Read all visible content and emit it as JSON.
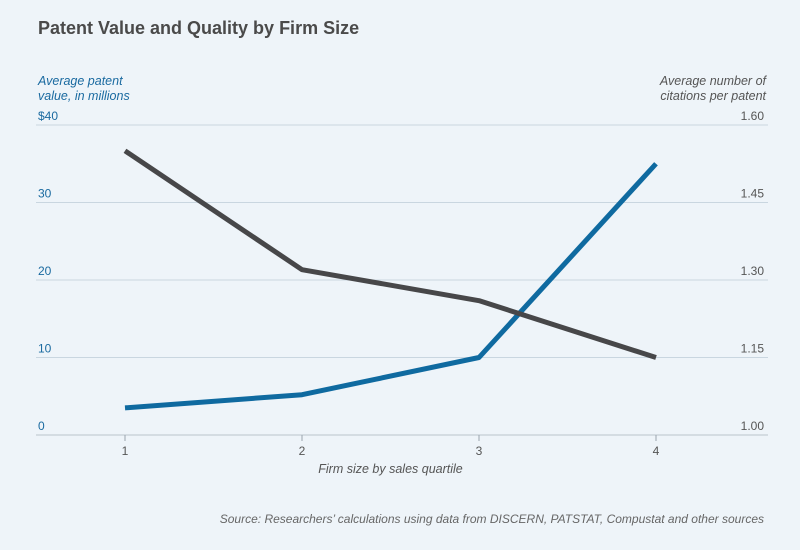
{
  "title": "Patent Value and Quality by Firm Size",
  "source": "Source: Researchers’ calculations using data from DISCERN, PATSTAT, Compustat and other sources",
  "chart_data": {
    "type": "line",
    "title": "Patent Value and Quality by Firm Size",
    "xlabel": "Firm size by sales quartile",
    "x": [
      1,
      2,
      3,
      4
    ],
    "x_tick_labels": [
      "1",
      "2",
      "3",
      "4"
    ],
    "y_left": {
      "label": [
        "Average patent",
        "value, in millions"
      ],
      "range": [
        0,
        40
      ],
      "ticks": [
        0,
        10,
        20,
        30,
        40
      ],
      "tick_labels": [
        "0",
        "10",
        "20",
        "30",
        "$40"
      ]
    },
    "y_right": {
      "label": [
        "Average number of",
        "citations per patent"
      ],
      "range": [
        1.0,
        1.6
      ],
      "ticks": [
        1.0,
        1.15,
        1.3,
        1.45,
        1.6
      ],
      "tick_labels": [
        "1.00",
        "1.15",
        "1.30",
        "1.45",
        "1.60"
      ]
    },
    "grid": true,
    "series": [
      {
        "axis": "left",
        "color": "#0f6aa0",
        "values": [
          3.5,
          5.2,
          10.0,
          35.0
        ]
      },
      {
        "axis": "right",
        "color": "#474749",
        "values": [
          1.55,
          1.32,
          1.26,
          1.15
        ]
      }
    ]
  }
}
